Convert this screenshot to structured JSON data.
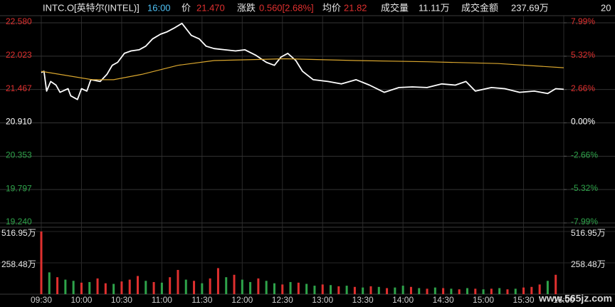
{
  "header": {
    "symbol": "INTC.O[英特尔(INTEL)]",
    "time": "16:00",
    "price_label": "价",
    "price": "21.470",
    "change_label": "涨跌",
    "change": "0.560[2.68%]",
    "avg_label": "均价",
    "avg": "21.82",
    "volume_label": "成交量",
    "volume": "11.11万",
    "amount_label": "成交金额",
    "amount": "237.69万",
    "extra": "20"
  },
  "watermark": "www.565jz.com",
  "chart_data": [
    {
      "type": "line",
      "xlim": [
        0,
        390
      ],
      "xticks": [
        {
          "value": 0,
          "label": "09:30"
        },
        {
          "value": 30,
          "label": "10:00"
        },
        {
          "value": 60,
          "label": "10:30"
        },
        {
          "value": 90,
          "label": "11:00"
        },
        {
          "value": 120,
          "label": "11:30"
        },
        {
          "value": 150,
          "label": "12:00"
        },
        {
          "value": 180,
          "label": "12:30"
        },
        {
          "value": 210,
          "label": "13:00"
        },
        {
          "value": 240,
          "label": "13:30"
        },
        {
          "value": 270,
          "label": "14:00"
        },
        {
          "value": 300,
          "label": "14:30"
        },
        {
          "value": 330,
          "label": "15:00"
        },
        {
          "value": 360,
          "label": "15:30"
        },
        {
          "value": 390,
          "label": "16:00"
        }
      ],
      "ylim": [
        19.24,
        22.58
      ],
      "yticks": [
        {
          "value": 19.24,
          "label": "19.240"
        },
        {
          "value": 19.797,
          "label": "19.797"
        },
        {
          "value": 20.353,
          "label": "20.353"
        },
        {
          "value": 20.91,
          "label": "20.910"
        },
        {
          "value": 21.467,
          "label": "21.467"
        },
        {
          "value": 22.023,
          "label": "22.023"
        },
        {
          "value": 22.58,
          "label": "22.580"
        }
      ],
      "y2lim": [
        -7.99,
        7.99
      ],
      "y2ticks": [
        {
          "value": -7.99,
          "label": "-7.99%"
        },
        {
          "value": -5.32,
          "label": "-5.32%"
        },
        {
          "value": -2.66,
          "label": "-2.66%"
        },
        {
          "value": 0,
          "label": "0.00%"
        },
        {
          "value": 2.66,
          "label": "2.66%"
        },
        {
          "value": 5.32,
          "label": "5.32%"
        },
        {
          "value": 7.99,
          "label": "7.99%"
        }
      ],
      "tick_colors": [
        "#2ea34a",
        "#2ea34a",
        "#2ea34a",
        "#ffffff",
        "#e0302f",
        "#e0302f",
        "#e0302f"
      ],
      "grid": true,
      "series": [
        {
          "color": "#ffffff",
          "x": [
            0,
            2,
            4,
            7,
            11,
            14,
            20,
            22,
            27,
            30,
            34,
            37,
            44,
            49,
            53,
            57,
            62,
            67,
            73,
            78,
            83,
            89,
            94,
            99,
            105,
            112,
            118,
            123,
            129,
            137,
            145,
            152,
            160,
            168,
            174,
            179,
            184,
            190,
            195,
            203,
            214,
            224,
            235,
            245,
            256,
            267,
            277,
            288,
            299,
            309,
            317,
            324,
            336,
            346,
            357,
            368,
            378,
            384,
            390
          ],
          "values": [
            21.75,
            21.77,
            21.44,
            21.6,
            21.54,
            21.42,
            21.48,
            21.36,
            21.3,
            21.48,
            21.44,
            21.63,
            21.6,
            21.72,
            21.87,
            21.92,
            22.07,
            22.11,
            22.13,
            22.19,
            22.31,
            22.39,
            22.43,
            22.49,
            22.57,
            22.37,
            22.31,
            22.19,
            22.15,
            22.13,
            22.11,
            22.13,
            22.04,
            21.92,
            21.87,
            22.01,
            22.07,
            21.95,
            21.77,
            21.63,
            21.6,
            21.56,
            21.63,
            21.54,
            21.42,
            21.5,
            21.51,
            21.5,
            21.56,
            21.54,
            21.6,
            21.44,
            21.5,
            21.48,
            21.42,
            21.44,
            21.4,
            21.48,
            21.47
          ]
        },
        {
          "color": "#d9a62e",
          "x": [
            0,
            38,
            54,
            75,
            102,
            129,
            182,
            235,
            288,
            341,
            390
          ],
          "values": [
            21.77,
            21.63,
            21.63,
            21.72,
            21.87,
            21.95,
            21.98,
            21.95,
            21.93,
            21.9,
            21.83
          ]
        }
      ]
    },
    {
      "type": "bar",
      "xlim": [
        0,
        390
      ],
      "ylim": [
        0,
        516.95
      ],
      "yticks": [
        {
          "value": 258.48,
          "label": "258.48万"
        },
        {
          "value": 516.95,
          "label": "516.95万"
        }
      ],
      "x": [
        0,
        6,
        12,
        18,
        24,
        30,
        36,
        42,
        48,
        54,
        60,
        66,
        72,
        78,
        84,
        90,
        96,
        102,
        108,
        114,
        120,
        126,
        132,
        138,
        144,
        150,
        156,
        162,
        168,
        174,
        180,
        186,
        192,
        198,
        204,
        210,
        216,
        222,
        228,
        234,
        240,
        246,
        252,
        258,
        264,
        270,
        276,
        282,
        288,
        294,
        300,
        306,
        312,
        318,
        324,
        330,
        336,
        342,
        348,
        354,
        360,
        366,
        372,
        378,
        384
      ],
      "values": [
        516.95,
        180,
        140,
        120,
        110,
        95,
        100,
        130,
        90,
        85,
        105,
        120,
        150,
        110,
        100,
        95,
        140,
        200,
        120,
        110,
        90,
        130,
        215,
        140,
        160,
        120,
        100,
        130,
        110,
        90,
        80,
        100,
        95,
        85,
        70,
        80,
        75,
        65,
        70,
        60,
        55,
        65,
        60,
        50,
        55,
        70,
        60,
        50,
        45,
        55,
        50,
        45,
        40,
        50,
        45,
        40,
        45,
        50,
        40,
        45,
        55,
        60,
        80,
        110,
        160
      ],
      "colors": [
        "#e0302f",
        "#2ea34a",
        "#e0302f",
        "#2ea34a",
        "#2ea34a",
        "#e0302f",
        "#2ea34a",
        "#e0302f",
        "#e0302f",
        "#2ea34a",
        "#e0302f",
        "#e0302f",
        "#e0302f",
        "#2ea34a",
        "#e0302f",
        "#2ea34a",
        "#e0302f",
        "#e0302f",
        "#2ea34a",
        "#e0302f",
        "#2ea34a",
        "#e0302f",
        "#e0302f",
        "#2ea34a",
        "#e0302f",
        "#2ea34a",
        "#2ea34a",
        "#e0302f",
        "#2ea34a",
        "#2ea34a",
        "#e0302f",
        "#2ea34a",
        "#e0302f",
        "#2ea34a",
        "#2ea34a",
        "#e0302f",
        "#2ea34a",
        "#e0302f",
        "#2ea34a",
        "#e0302f",
        "#2ea34a",
        "#e0302f",
        "#2ea34a",
        "#e0302f",
        "#2ea34a",
        "#2ea34a",
        "#e0302f",
        "#2ea34a",
        "#e0302f",
        "#2ea34a",
        "#e0302f",
        "#2ea34a",
        "#e0302f",
        "#2ea34a",
        "#e0302f",
        "#2ea34a",
        "#e0302f",
        "#2ea34a",
        "#e0302f",
        "#2ea34a",
        "#e0302f",
        "#e0302f",
        "#e0302f",
        "#2ea34a",
        "#e0302f"
      ]
    }
  ]
}
